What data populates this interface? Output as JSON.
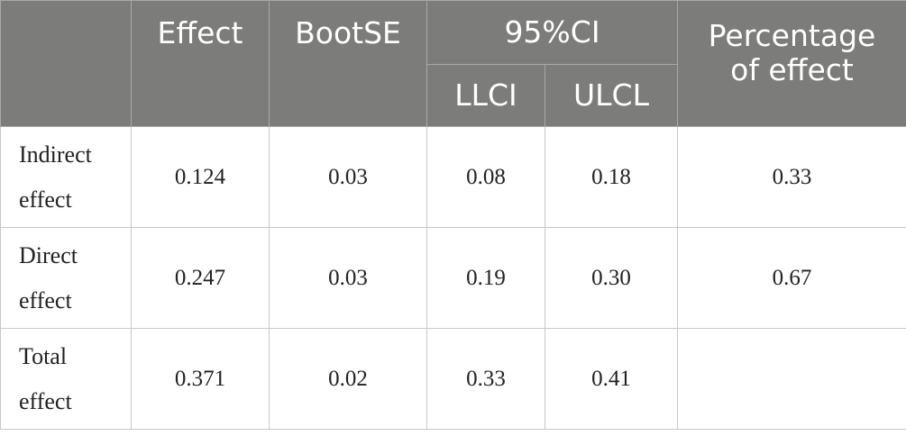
{
  "table": {
    "headers": {
      "effect": "Effect",
      "bootse": "BootSE",
      "ci": "95%CI",
      "llci": "LLCI",
      "ulcl": "ULCL",
      "percentage_line1": "Percentage",
      "percentage_line2": "of effect"
    },
    "rows": [
      {
        "label_line1": "Indirect",
        "label_line2": "effect",
        "effect": "0.124",
        "bootse": "0.03",
        "llci": "0.08",
        "ulcl": "0.18",
        "percentage": "0.33"
      },
      {
        "label_line1": "Direct",
        "label_line2": "effect",
        "effect": "0.247",
        "bootse": "0.03",
        "llci": "0.19",
        "ulcl": "0.30",
        "percentage": "0.67"
      },
      {
        "label_line1": "Total",
        "label_line2": "effect",
        "effect": "0.371",
        "bootse": "0.02",
        "llci": "0.33",
        "ulcl": "0.41",
        "percentage": ""
      }
    ]
  }
}
